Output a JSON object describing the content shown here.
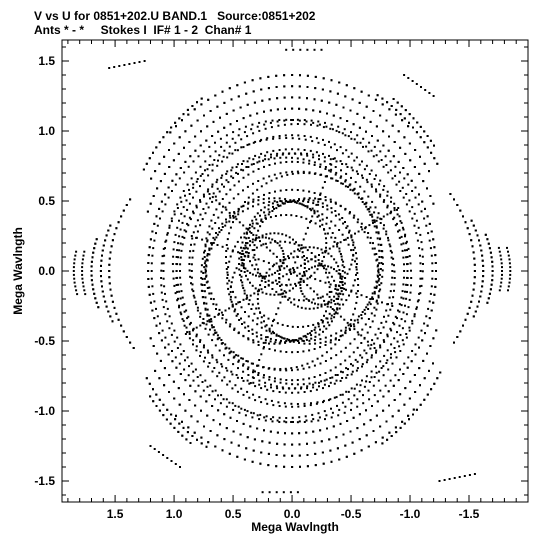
{
  "header": {
    "line1": "V vs U for 0851+202.U BAND.1   Source:0851+202",
    "line2": "Ants * - *     Stokes I  IF# 1 - 2  Chan# 1"
  },
  "chart_data": {
    "type": "scatter",
    "xlabel": "Mega Wavlngth",
    "ylabel": "Mega Wavlngth",
    "xlim": [
      1.95,
      -2.0
    ],
    "ylim": [
      -1.65,
      1.65
    ],
    "x_reversed": true,
    "grid": false,
    "xticks": [
      {
        "value": 1.5,
        "label": "1.5"
      },
      {
        "value": 1.0,
        "label": "1.0"
      },
      {
        "value": 0.5,
        "label": "0.5"
      },
      {
        "value": 0.0,
        "label": "0.0"
      },
      {
        "value": -0.5,
        "label": "-0.5"
      },
      {
        "value": -1.0,
        "label": "-1.0"
      },
      {
        "value": -1.5,
        "label": "-1.5"
      }
    ],
    "yticks": [
      {
        "value": 1.5,
        "label": "1.5"
      },
      {
        "value": 1.0,
        "label": "1.0"
      },
      {
        "value": 0.5,
        "label": "0.5"
      },
      {
        "value": 0.0,
        "label": "0.0"
      },
      {
        "value": -0.5,
        "label": "-0.5"
      },
      {
        "value": -1.0,
        "label": "-1.0"
      },
      {
        "value": -1.5,
        "label": "-1.5"
      }
    ],
    "point_color": "#000000",
    "tracks": [
      {
        "u": 0.25,
        "v": 0.1,
        "rx": 0.18,
        "ry": 0.14,
        "a0": 0,
        "a1": 360,
        "n": 40
      },
      {
        "u": -0.15,
        "v": -0.05,
        "rx": 0.26,
        "ry": 0.22,
        "a0": 0,
        "a1": 360,
        "n": 48
      },
      {
        "u": 0.05,
        "v": 0.2,
        "rx": 0.34,
        "ry": 0.3,
        "a0": 0,
        "a1": 360,
        "n": 56
      },
      {
        "u": 0.1,
        "v": -0.15,
        "rx": 0.42,
        "ry": 0.36,
        "a0": 0,
        "a1": 360,
        "n": 64
      },
      {
        "u": -0.05,
        "v": 0.05,
        "rx": 0.5,
        "ry": 0.45,
        "a0": 0,
        "a1": 360,
        "n": 72
      },
      {
        "u": 0.15,
        "v": 0.0,
        "rx": 0.58,
        "ry": 0.52,
        "a0": 0,
        "a1": 360,
        "n": 80
      },
      {
        "u": -0.1,
        "v": 0.1,
        "rx": 0.66,
        "ry": 0.6,
        "a0": 0,
        "a1": 360,
        "n": 88
      },
      {
        "u": 0.0,
        "v": -0.1,
        "rx": 0.74,
        "ry": 0.68,
        "a0": 0,
        "a1": 360,
        "n": 96
      },
      {
        "u": 0.05,
        "v": 0.05,
        "rx": 0.82,
        "ry": 0.76,
        "a0": 0,
        "a1": 360,
        "n": 104
      },
      {
        "u": -0.05,
        "v": 0.0,
        "rx": 0.9,
        "ry": 0.84,
        "a0": 0,
        "a1": 360,
        "n": 110
      },
      {
        "u": 0.0,
        "v": 0.05,
        "rx": 0.98,
        "ry": 0.92,
        "a0": 0,
        "a1": 360,
        "n": 116
      },
      {
        "u": 0.05,
        "v": -0.05,
        "rx": 1.06,
        "ry": 1.0,
        "a0": 0,
        "a1": 360,
        "n": 120
      },
      {
        "u": -0.05,
        "v": 0.0,
        "rx": 1.14,
        "ry": 1.08,
        "a0": 0,
        "a1": 360,
        "n": 124
      },
      {
        "u": 0.0,
        "v": 0.0,
        "rx": 1.22,
        "ry": 1.16,
        "a0": 0,
        "a1": 360,
        "n": 128
      },
      {
        "u": 0.0,
        "v": 0.0,
        "rx": 1.3,
        "ry": 1.24,
        "a0": 20,
        "a1": 160,
        "n": 50
      },
      {
        "u": 0.0,
        "v": 0.0,
        "rx": 1.3,
        "ry": 1.24,
        "a0": 200,
        "a1": 340,
        "n": 50
      },
      {
        "u": 0.0,
        "v": 0.0,
        "rx": 1.38,
        "ry": 1.32,
        "a0": 30,
        "a1": 150,
        "n": 44
      },
      {
        "u": 0.0,
        "v": 0.0,
        "rx": 1.38,
        "ry": 1.32,
        "a0": 210,
        "a1": 330,
        "n": 44
      },
      {
        "u": 0.0,
        "v": 0.0,
        "rx": 1.46,
        "ry": 1.4,
        "a0": 45,
        "a1": 135,
        "n": 34
      },
      {
        "u": 0.0,
        "v": 0.0,
        "rx": 1.46,
        "ry": 1.4,
        "a0": 225,
        "a1": 315,
        "n": 34
      },
      {
        "u": 0.0,
        "v": 0.0,
        "rx": 1.55,
        "ry": 1.1,
        "a0": 150,
        "a1": 210,
        "n": 26
      },
      {
        "u": 0.0,
        "v": 0.0,
        "rx": 1.62,
        "ry": 1.05,
        "a0": 160,
        "a1": 200,
        "n": 20
      },
      {
        "u": 0.0,
        "v": 0.0,
        "rx": 1.7,
        "ry": 1.0,
        "a0": 165,
        "a1": 195,
        "n": 16
      },
      {
        "u": 0.0,
        "v": 0.0,
        "rx": 1.78,
        "ry": 0.95,
        "a0": 170,
        "a1": 190,
        "n": 12
      },
      {
        "u": 0.0,
        "v": 0.0,
        "rx": 1.55,
        "ry": 1.1,
        "a0": -30,
        "a1": 30,
        "n": 26
      },
      {
        "u": 0.0,
        "v": 0.0,
        "rx": 1.62,
        "ry": 1.05,
        "a0": -20,
        "a1": 20,
        "n": 20
      },
      {
        "u": 0.0,
        "v": 0.0,
        "rx": 1.7,
        "ry": 1.0,
        "a0": -15,
        "a1": 15,
        "n": 16
      },
      {
        "u": 0.0,
        "v": 0.0,
        "rx": 1.85,
        "ry": 0.95,
        "a0": -10,
        "a1": 10,
        "n": 12
      },
      {
        "u": 0.0,
        "v": 0.0,
        "rx": 1.45,
        "ry": 1.45,
        "a0": 120,
        "a1": 150,
        "n": 16
      },
      {
        "u": 0.0,
        "v": 0.0,
        "rx": 1.5,
        "ry": 1.5,
        "a0": 125,
        "a1": 145,
        "n": 12
      },
      {
        "u": 0.0,
        "v": 0.0,
        "rx": 1.45,
        "ry": 1.45,
        "a0": 300,
        "a1": 330,
        "n": 16
      },
      {
        "u": 0.0,
        "v": 0.0,
        "rx": 1.5,
        "ry": 1.5,
        "a0": 305,
        "a1": 325,
        "n": 12
      },
      {
        "u": 0.0,
        "v": 0.0,
        "rx": 1.45,
        "ry": 1.45,
        "a0": 30,
        "a1": 60,
        "n": 16
      },
      {
        "u": 0.0,
        "v": 0.0,
        "rx": 1.45,
        "ry": 1.45,
        "a0": 210,
        "a1": 240,
        "n": 16
      }
    ],
    "segments": [
      {
        "u0": 1.55,
        "v0": 1.45,
        "u1": 1.25,
        "v1": 1.5,
        "n": 8
      },
      {
        "u0": -1.55,
        "v0": -1.45,
        "u1": -1.25,
        "v1": -1.5,
        "n": 8
      },
      {
        "u0": -0.95,
        "v0": 1.4,
        "u1": -1.2,
        "v1": 1.25,
        "n": 8
      },
      {
        "u0": 0.95,
        "v0": -1.4,
        "u1": 1.2,
        "v1": -1.25,
        "n": 8
      },
      {
        "u0": 0.05,
        "v0": 1.58,
        "u1": -0.25,
        "v1": 1.58,
        "n": 6
      },
      {
        "u0": -0.05,
        "v0": -1.58,
        "u1": 0.25,
        "v1": -1.58,
        "n": 6
      },
      {
        "u0": -0.9,
        "v0": 0.45,
        "u1": 0.9,
        "v1": -0.45,
        "n": 60
      },
      {
        "u0": -0.7,
        "v0": -0.55,
        "u1": 0.7,
        "v1": 0.55,
        "n": 50
      },
      {
        "u0": -0.35,
        "v0": 0.8,
        "u1": 0.35,
        "v1": -0.8,
        "n": 40
      },
      {
        "u0": 0.85,
        "v0": 0.25,
        "u1": -0.85,
        "v1": -0.25,
        "n": 40
      }
    ]
  }
}
